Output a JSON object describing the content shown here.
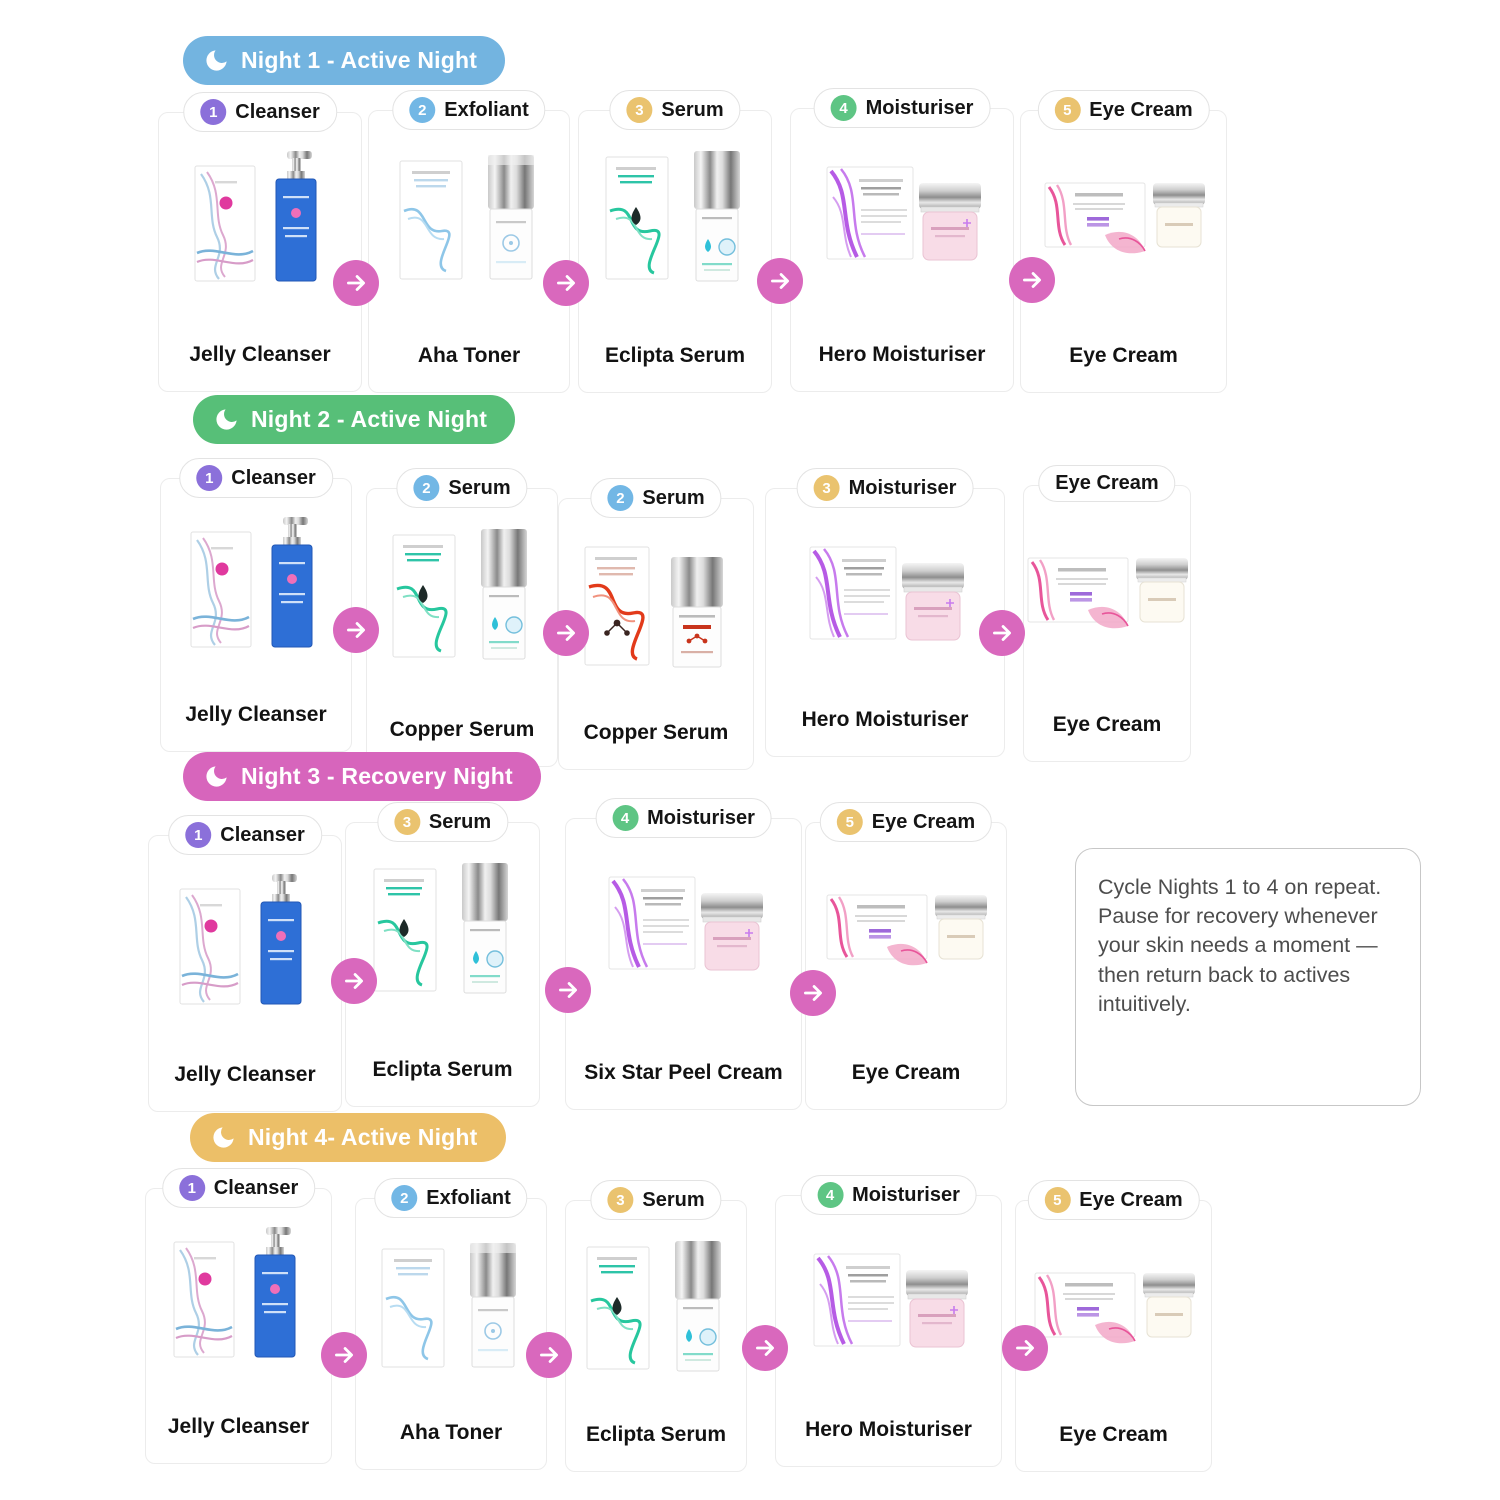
{
  "colors": {
    "night1": "#73b4e0",
    "night2": "#57bf78",
    "night3": "#d765bc",
    "night4": "#ecbf68",
    "arrow": "#d968bd",
    "badge_purple": "#8b70da",
    "badge_blue": "#72b7e5",
    "badge_yellow": "#eac36f",
    "badge_green": "#5ec584"
  },
  "note": {
    "text": "Cycle Nights 1 to 4 on repeat. Pause for recovery whenever your skin needs a moment — then return back to actives intuitively."
  },
  "sections": [
    {
      "id": "night-1",
      "title": "Night 1 - Active Night",
      "color": "#73b4e0",
      "cards": [
        {
          "step": "1",
          "badge_color": "#8b70da",
          "label": "Cleanser",
          "product_name": "Jelly Cleanser",
          "product_type": "cleanser"
        },
        {
          "step": "2",
          "badge_color": "#72b7e5",
          "label": "Exfoliant",
          "product_name": "Aha Toner",
          "product_type": "toner"
        },
        {
          "step": "3",
          "badge_color": "#eac36f",
          "label": "Serum",
          "product_name": "Eclipta Serum",
          "product_type": "serum-green"
        },
        {
          "step": "4",
          "badge_color": "#5ec584",
          "label": "Moisturiser",
          "product_name": "Hero Moisturiser",
          "product_type": "moisturiser"
        },
        {
          "step": "5",
          "badge_color": "#eac36f",
          "label": "Eye Cream",
          "product_name": "Eye Cream",
          "product_type": "eyecream"
        }
      ]
    },
    {
      "id": "night-2",
      "title": "Night 2 - Active Night",
      "color": "#57bf78",
      "cards": [
        {
          "step": "1",
          "badge_color": "#8b70da",
          "label": "Cleanser",
          "product_name": "Jelly Cleanser",
          "product_type": "cleanser"
        },
        {
          "step": "2",
          "badge_color": "#72b7e5",
          "label": "Serum",
          "product_name": "Copper Serum",
          "product_type": "serum-green"
        },
        {
          "step": "2",
          "badge_color": "#72b7e5",
          "label": "Serum",
          "product_name": "Copper Serum",
          "product_type": "serum-red"
        },
        {
          "step": "3",
          "badge_color": "#eac36f",
          "label": "Moisturiser",
          "product_name": "Hero Moisturiser",
          "product_type": "moisturiser"
        },
        {
          "step": null,
          "badge_color": null,
          "label": "Eye Cream",
          "product_name": "Eye Cream",
          "product_type": "eyecream"
        }
      ]
    },
    {
      "id": "night-3",
      "title": "Night 3 - Recovery Night",
      "color": "#d765bc",
      "cards": [
        {
          "step": "1",
          "badge_color": "#8b70da",
          "label": "Cleanser",
          "product_name": "Jelly Cleanser",
          "product_type": "cleanser"
        },
        {
          "step": "3",
          "badge_color": "#eac36f",
          "label": "Serum",
          "product_name": "Eclipta Serum",
          "product_type": "serum-green"
        },
        {
          "step": "4",
          "badge_color": "#5ec584",
          "label": "Moisturiser",
          "product_name": "Six Star Peel Cream",
          "product_type": "moisturiser"
        },
        {
          "step": "5",
          "badge_color": "#eac36f",
          "label": "Eye Cream",
          "product_name": "Eye Cream",
          "product_type": "eyecream"
        }
      ]
    },
    {
      "id": "night-4",
      "title": "Night 4- Active Night",
      "color": "#ecbf68",
      "cards": [
        {
          "step": "1",
          "badge_color": "#8b70da",
          "label": "Cleanser",
          "product_name": "Jelly Cleanser",
          "product_type": "cleanser"
        },
        {
          "step": "2",
          "badge_color": "#72b7e5",
          "label": "Exfoliant",
          "product_name": "Aha Toner",
          "product_type": "toner"
        },
        {
          "step": "3",
          "badge_color": "#eac36f",
          "label": "Serum",
          "product_name": "Eclipta Serum",
          "product_type": "serum-green"
        },
        {
          "step": "4",
          "badge_color": "#5ec584",
          "label": "Moisturiser",
          "product_name": "Hero Moisturiser",
          "product_type": "moisturiser"
        },
        {
          "step": "5",
          "badge_color": "#eac36f",
          "label": "Eye Cream",
          "product_name": "Eye Cream",
          "product_type": "eyecream"
        }
      ]
    }
  ]
}
